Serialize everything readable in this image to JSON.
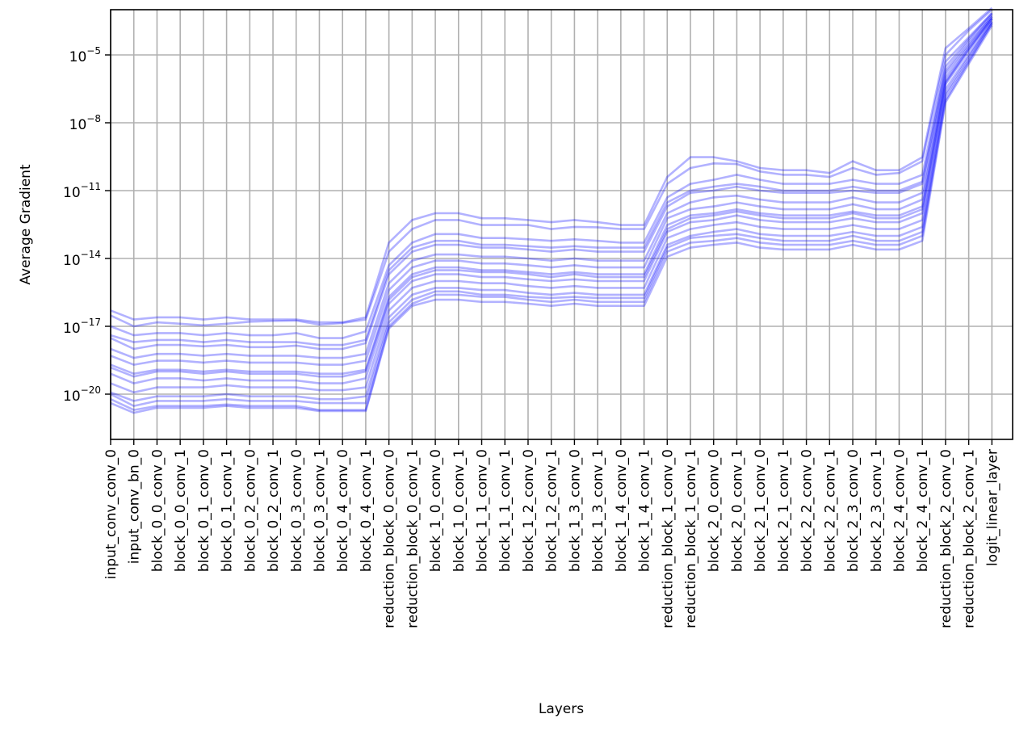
{
  "chart_data": {
    "type": "line",
    "title": "",
    "xlabel": "Layers",
    "ylabel": "Average Gradient",
    "yscale": "log",
    "ylim": [
      1e-22,
      0.001
    ],
    "yticks": [
      {
        "value": 1e-20,
        "base": "10",
        "exp": "−20"
      },
      {
        "value": 1e-17,
        "base": "10",
        "exp": "−17"
      },
      {
        "value": 1e-14,
        "base": "10",
        "exp": "−14"
      },
      {
        "value": 1e-11,
        "base": "10",
        "exp": "−11"
      },
      {
        "value": 1e-08,
        "base": "10",
        "exp": "−8"
      },
      {
        "value": 1e-05,
        "base": "10",
        "exp": "−5"
      }
    ],
    "grid": true,
    "line_color": "#0000ff",
    "categories": [
      "input_conv_conv_0",
      "input_conv_bn_0",
      "block_0_0_conv_0",
      "block_0_0_conv_1",
      "block_0_1_conv_0",
      "block_0_1_conv_1",
      "block_0_2_conv_0",
      "block_0_2_conv_1",
      "block_0_3_conv_0",
      "block_0_3_conv_1",
      "block_0_4_conv_0",
      "block_0_4_conv_1",
      "reduction_block_0_conv_0",
      "reduction_block_0_conv_1",
      "block_1_0_conv_0",
      "block_1_0_conv_1",
      "block_1_1_conv_0",
      "block_1_1_conv_1",
      "block_1_2_conv_0",
      "block_1_2_conv_1",
      "block_1_3_conv_0",
      "block_1_3_conv_1",
      "block_1_4_conv_0",
      "block_1_4_conv_1",
      "reduction_block_1_conv_0",
      "reduction_block_1_conv_1",
      "block_2_0_conv_0",
      "block_2_0_conv_1",
      "block_2_1_conv_0",
      "block_2_1_conv_1",
      "block_2_2_conv_0",
      "block_2_2_conv_1",
      "block_2_3_conv_0",
      "block_2_3_conv_1",
      "block_2_4_conv_0",
      "block_2_4_conv_1",
      "reduction_block_2_conv_0",
      "reduction_block_2_conv_1",
      "logit_linear_layer"
    ],
    "series": [
      {
        "values": [
          3e-17,
          1e-17,
          1.5e-17,
          1.3e-17,
          1.1e-17,
          1.3e-17,
          1.6e-17,
          1.7e-17,
          1.8e-17,
          1.2e-17,
          1.4e-17,
          2e-17,
          2e-14,
          2e-13,
          5e-13,
          5e-13,
          3e-13,
          3e-13,
          3e-13,
          2e-13,
          2.5e-13,
          2.4e-13,
          2e-13,
          2e-13,
          2e-11,
          1e-10,
          1.6e-10,
          1.5e-10,
          7e-11,
          5e-11,
          5e-11,
          4e-11,
          1e-10,
          5e-11,
          6e-11,
          2e-10,
          1e-05,
          0.00012,
          0.001
        ]
      },
      {
        "values": [
          1e-17,
          4e-18,
          5e-18,
          5e-18,
          4e-18,
          5e-18,
          4e-18,
          4e-18,
          5e-18,
          3e-18,
          3e-18,
          6e-18,
          5e-15,
          5e-14,
          1.2e-13,
          1.2e-13,
          8e-14,
          8e-14,
          7e-14,
          6e-14,
          7e-14,
          6e-14,
          5e-14,
          5e-14,
          5e-12,
          2e-11,
          3e-11,
          5e-11,
          3e-11,
          2e-11,
          2e-11,
          2e-11,
          3e-11,
          2e-11,
          2e-11,
          5e-11,
          5e-06,
          6e-05,
          0.0007
        ]
      },
      {
        "values": [
          3e-18,
          1e-18,
          1.5e-18,
          1.5e-18,
          1.3e-18,
          1.5e-18,
          1.2e-18,
          1.2e-18,
          1.4e-18,
          1e-18,
          1e-18,
          1.8e-18,
          2e-15,
          2e-14,
          4e-14,
          4e-14,
          3e-14,
          3e-14,
          2.5e-14,
          2e-14,
          2.5e-14,
          2e-14,
          2e-14,
          2e-14,
          2e-12,
          8e-12,
          1e-11,
          1.5e-11,
          1e-11,
          8e-12,
          8e-12,
          8e-12,
          1e-11,
          8e-12,
          8e-12,
          2e-11,
          2e-06,
          4e-05,
          0.0006
        ]
      },
      {
        "values": [
          1e-18,
          4e-19,
          6e-19,
          6e-19,
          5e-19,
          6e-19,
          5e-19,
          5e-19,
          5e-19,
          4e-19,
          4e-19,
          6e-19,
          8e-16,
          8e-15,
          1.5e-14,
          1.5e-14,
          1.2e-14,
          1.2e-14,
          1e-14,
          8e-15,
          1e-14,
          8e-15,
          8e-15,
          8e-15,
          1e-12,
          3e-12,
          5e-12,
          6e-12,
          4e-12,
          3e-12,
          3e-12,
          3e-12,
          5e-12,
          3e-12,
          3e-12,
          8e-12,
          1.5e-06,
          3e-05,
          0.0005
        ]
      },
      {
        "values": [
          5e-19,
          2e-19,
          3e-19,
          3e-19,
          2.5e-19,
          3e-19,
          2.5e-19,
          2.5e-19,
          2.5e-19,
          2e-19,
          2e-19,
          3e-19,
          4e-16,
          4e-15,
          8e-15,
          8e-15,
          6e-15,
          6e-15,
          5e-15,
          4e-15,
          5e-15,
          4e-15,
          4e-15,
          4e-15,
          6e-13,
          1.5e-12,
          2e-12,
          3e-12,
          2e-12,
          1.5e-12,
          1.5e-12,
          1.5e-12,
          2.5e-12,
          1.5e-12,
          1.5e-12,
          4e-12,
          1e-06,
          2.5e-05,
          0.0005
        ]
      },
      {
        "values": [
          2e-19,
          8e-20,
          1.2e-19,
          1.2e-19,
          1e-19,
          1.2e-19,
          1e-19,
          1e-19,
          1e-19,
          8e-20,
          8e-20,
          1.2e-19,
          2e-16,
          2e-15,
          4e-15,
          4e-15,
          3e-15,
          3e-15,
          2.5e-15,
          2e-15,
          2.5e-15,
          2e-15,
          2e-15,
          2e-15,
          3e-13,
          8e-13,
          1e-12,
          1.5e-12,
          1e-12,
          8e-13,
          8e-13,
          8e-13,
          1.2e-12,
          8e-13,
          8e-13,
          2e-12,
          7e-07,
          2e-05,
          0.0004
        ]
      },
      {
        "values": [
          8e-20,
          3e-20,
          5e-20,
          5e-20,
          4e-20,
          5e-20,
          4e-20,
          4e-20,
          4e-20,
          3e-20,
          3e-20,
          5e-20,
          1e-16,
          1e-15,
          2e-15,
          2e-15,
          1.5e-15,
          1.5e-15,
          1.2e-15,
          1e-15,
          1.2e-15,
          1e-15,
          1e-15,
          1e-15,
          1.5e-13,
          4e-13,
          5e-13,
          8e-13,
          5e-13,
          4e-13,
          4e-13,
          4e-13,
          6e-13,
          4e-13,
          4e-13,
          1e-12,
          5e-07,
          1.5e-05,
          0.0004
        ]
      },
      {
        "values": [
          3e-20,
          1.2e-20,
          2e-20,
          2e-20,
          2e-20,
          2.5e-20,
          2e-20,
          2e-20,
          2e-20,
          1.5e-20,
          1.5e-20,
          2e-20,
          5e-17,
          5e-16,
          1e-15,
          1e-15,
          8e-16,
          8e-16,
          6e-16,
          5e-16,
          6e-16,
          5e-16,
          5e-16,
          5e-16,
          8e-14,
          2e-13,
          3e-13,
          4e-13,
          2.5e-13,
          2e-13,
          2e-13,
          2e-13,
          3e-13,
          2e-13,
          2e-13,
          5e-13,
          3e-07,
          1e-05,
          0.0003
        ]
      },
      {
        "values": [
          1.2e-20,
          5e-21,
          8e-21,
          8e-21,
          8e-21,
          1e-20,
          8e-21,
          8e-21,
          8e-21,
          6e-21,
          6e-21,
          8e-21,
          2.5e-17,
          2.5e-16,
          5e-16,
          5e-16,
          4e-16,
          4e-16,
          3e-16,
          2.5e-16,
          3e-16,
          2.5e-16,
          2.5e-16,
          2.5e-16,
          4e-14,
          1e-13,
          1.5e-13,
          2e-13,
          1.2e-13,
          1e-13,
          1e-13,
          1e-13,
          1.5e-13,
          1e-13,
          1e-13,
          2.5e-13,
          2e-07,
          8e-06,
          0.0003
        ]
      },
      {
        "values": [
          6e-21,
          2e-21,
          3e-21,
          3e-21,
          3e-21,
          3.5e-21,
          3e-21,
          3e-21,
          3e-21,
          2e-21,
          2e-21,
          2e-21,
          1e-17,
          1e-16,
          2.5e-16,
          2.5e-16,
          2e-16,
          2e-16,
          1.5e-16,
          1.2e-16,
          1.5e-16,
          1.2e-16,
          1.2e-16,
          1.2e-16,
          2e-14,
          5e-14,
          6e-14,
          8e-14,
          5e-14,
          4e-14,
          4e-14,
          4e-14,
          6e-14,
          4e-14,
          4e-14,
          1e-13,
          1e-07,
          5e-06,
          0.00025
        ]
      },
      {
        "values": [
          5e-17,
          2e-17,
          2.5e-17,
          2.5e-17,
          2e-17,
          2.5e-17,
          2e-17,
          2e-17,
          2e-17,
          1.5e-17,
          1.5e-17,
          2.5e-17,
          5e-14,
          5e-13,
          1e-12,
          1e-12,
          6e-13,
          6e-13,
          5e-13,
          4e-13,
          5e-13,
          4e-13,
          3e-13,
          3e-13,
          4e-11,
          3e-10,
          3e-10,
          2e-10,
          1e-10,
          8e-11,
          8e-11,
          6e-11,
          2e-10,
          8e-11,
          8e-11,
          3e-10,
          2e-05,
          0.00015,
          0.0012
        ]
      },
      {
        "values": [
          4e-18,
          2e-18,
          2.5e-18,
          2.5e-18,
          2e-18,
          2.5e-18,
          2e-18,
          2e-18,
          2e-18,
          1.5e-18,
          1.5e-18,
          2.5e-18,
          3e-15,
          3e-14,
          6e-14,
          6e-14,
          4e-14,
          4e-14,
          3.5e-14,
          3e-14,
          3.5e-14,
          3e-14,
          3e-14,
          3e-14,
          3e-12,
          1e-11,
          1.5e-11,
          2e-11,
          1.5e-11,
          1e-11,
          1e-11,
          1e-11,
          1.5e-11,
          1e-11,
          1e-11,
          2.5e-11,
          3e-06,
          5e-05,
          0.0007
        ]
      },
      {
        "values": [
          1.5e-19,
          6e-20,
          1e-19,
          1e-19,
          8e-20,
          1e-19,
          8e-20,
          8e-20,
          8e-20,
          6e-20,
          6e-20,
          1e-19,
          1.5e-16,
          1.5e-15,
          3e-15,
          3e-15,
          2.5e-15,
          2.5e-15,
          2e-15,
          1.5e-15,
          2e-15,
          1.5e-15,
          1.5e-15,
          1.5e-15,
          2e-13,
          6e-13,
          8e-13,
          1.2e-12,
          8e-13,
          6e-13,
          6e-13,
          6e-13,
          1e-12,
          6e-13,
          6e-13,
          1.5e-12,
          6e-07,
          1.8e-05,
          0.0004
        ]
      },
      {
        "values": [
          1e-20,
          3e-21,
          5e-21,
          5e-21,
          5e-21,
          6e-21,
          5e-21,
          5e-21,
          5e-21,
          4e-21,
          4e-21,
          4e-21,
          1.5e-17,
          1.5e-16,
          3.5e-16,
          3.5e-16,
          2.5e-16,
          2.5e-16,
          2e-16,
          1.8e-16,
          2e-16,
          1.8e-16,
          1.8e-16,
          1.8e-16,
          3e-14,
          8e-14,
          1e-13,
          1.2e-13,
          8e-14,
          6e-14,
          6e-14,
          6e-14,
          1e-13,
          6e-14,
          6e-14,
          1.5e-13,
          1.5e-07,
          6e-06,
          0.00025
        ]
      },
      {
        "values": [
          4e-21,
          1.5e-21,
          2.5e-21,
          2.5e-21,
          2.5e-21,
          3e-21,
          2.5e-21,
          2.5e-21,
          2.5e-21,
          1.8e-21,
          1.8e-21,
          1.8e-21,
          8e-18,
          8e-17,
          1.5e-16,
          1.5e-16,
          1.2e-16,
          1.2e-16,
          1e-16,
          8e-17,
          1e-16,
          8e-17,
          8e-17,
          8e-17,
          1.2e-14,
          3e-14,
          4e-14,
          5e-14,
          3e-14,
          2.5e-14,
          2.5e-14,
          2.5e-14,
          4e-14,
          2.5e-14,
          2.5e-14,
          6e-14,
          8e-08,
          4e-06,
          0.0002
        ]
      }
    ]
  }
}
